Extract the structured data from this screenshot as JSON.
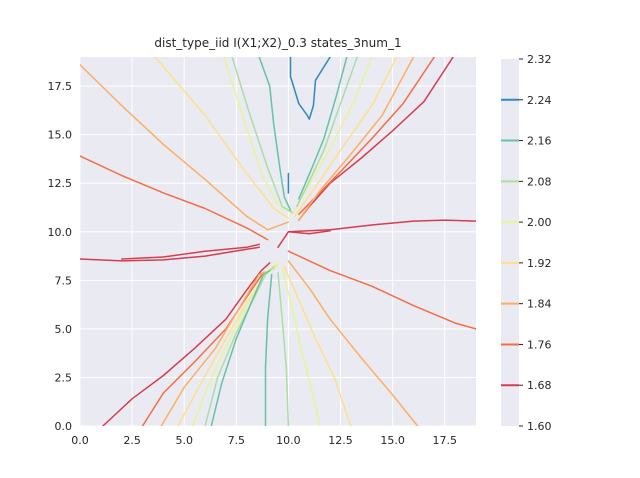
{
  "chart_data": {
    "type": "contour",
    "title": "dist_type_iid I(X1;X2)_0.3 states_3num_1",
    "xlabel": "",
    "ylabel": "",
    "xlim": [
      0,
      19
    ],
    "ylim": [
      0,
      19
    ],
    "x_ticks": [
      0.0,
      2.5,
      5.0,
      7.5,
      10.0,
      12.5,
      15.0,
      17.5
    ],
    "x_tick_labels": [
      "0.0",
      "2.5",
      "5.0",
      "7.5",
      "10.0",
      "12.5",
      "15.0",
      "17.5"
    ],
    "y_ticks": [
      0.0,
      2.5,
      5.0,
      7.5,
      10.0,
      12.5,
      15.0,
      17.5
    ],
    "y_tick_labels": [
      "0.0",
      "2.5",
      "5.0",
      "7.5",
      "10.0",
      "12.5",
      "15.0",
      "17.5"
    ],
    "grid": true,
    "colorbar": {
      "range": [
        1.6,
        2.32
      ],
      "ticks": [
        1.6,
        1.68,
        1.76,
        1.84,
        1.92,
        2.0,
        2.08,
        2.16,
        2.24,
        2.32
      ],
      "tick_labels": [
        "1.60",
        "1.68",
        "1.76",
        "1.84",
        "1.92",
        "2.00",
        "2.08",
        "2.16",
        "2.24",
        "2.32"
      ],
      "colors": [
        "#d53e4f",
        "#f46d43",
        "#fdae61",
        "#fee08b",
        "#e6f598",
        "#abdda4",
        "#66c2a5",
        "#3288bd"
      ]
    },
    "contours": [
      {
        "level": 1.68,
        "color": "#d53e4f",
        "paths": [
          [
            [
              0,
              8.6
            ],
            [
              2,
              8.5
            ],
            [
              4,
              8.55
            ],
            [
              6,
              8.75
            ],
            [
              8,
              9.1
            ],
            [
              8.6,
              9.2
            ]
          ],
          [
            [
              8.6,
              9.35
            ],
            [
              8,
              9.2
            ],
            [
              6,
              9.0
            ],
            [
              4,
              8.7
            ],
            [
              2,
              8.6
            ]
          ],
          [
            [
              1.1,
              0
            ],
            [
              2.5,
              1.4
            ],
            [
              4,
              2.6
            ],
            [
              5.5,
              4.0
            ],
            [
              7,
              5.5
            ],
            [
              8,
              7.0
            ],
            [
              8.7,
              8.0
            ],
            [
              9.1,
              8.4
            ]
          ],
          [
            [
              9.5,
              9.2
            ],
            [
              10,
              10
            ],
            [
              12,
              10.1
            ],
            [
              14,
              10.35
            ],
            [
              16,
              10.55
            ],
            [
              17.5,
              10.6
            ],
            [
              19,
              10.55
            ]
          ],
          [
            [
              10,
              10
            ],
            [
              11,
              9.9
            ],
            [
              12,
              10.05
            ]
          ],
          [
            [
              10.5,
              10.6
            ],
            [
              11,
              11.3
            ],
            [
              12,
              12.5
            ],
            [
              13.5,
              13.8
            ],
            [
              15,
              15.2
            ],
            [
              16.5,
              16.7
            ],
            [
              17.9,
              19
            ]
          ]
        ]
      },
      {
        "level": 1.76,
        "color": "#f46d43",
        "paths": [
          [
            [
              0,
              13.9
            ],
            [
              2,
              12.9
            ],
            [
              4,
              12.0
            ],
            [
              6,
              11.2
            ],
            [
              8,
              10.2
            ],
            [
              9,
              9.6
            ]
          ],
          [
            [
              3,
              0
            ],
            [
              4,
              1.7
            ],
            [
              5.5,
              3.3
            ],
            [
              7,
              5.0
            ],
            [
              8.1,
              6.8
            ],
            [
              8.8,
              7.9
            ]
          ],
          [
            [
              10,
              9.0
            ],
            [
              12,
              8.0
            ],
            [
              14,
              7.2
            ],
            [
              16,
              6.2
            ],
            [
              18,
              5.3
            ],
            [
              19,
              5.0
            ]
          ],
          [
            [
              10.5,
              10.9
            ],
            [
              11.5,
              12
            ],
            [
              12.5,
              13.1
            ],
            [
              14,
              14.8
            ],
            [
              15.5,
              16.6
            ],
            [
              17,
              19
            ]
          ]
        ]
      },
      {
        "level": 1.84,
        "color": "#fdae61",
        "paths": [
          [
            [
              0,
              18.6
            ],
            [
              2,
              16.5
            ],
            [
              4,
              14.5
            ],
            [
              6,
              12.7
            ],
            [
              8,
              10.8
            ],
            [
              9,
              10.1
            ],
            [
              10,
              10.5
            ]
          ],
          [
            [
              3.9,
              0
            ],
            [
              5,
              2.0
            ],
            [
              6.5,
              4.0
            ],
            [
              7.6,
              6.0
            ],
            [
              8.6,
              7.8
            ],
            [
              9.3,
              8.1
            ]
          ],
          [
            [
              10,
              8.5
            ],
            [
              11,
              7.1
            ],
            [
              12,
              5.5
            ],
            [
              13.5,
              3.5
            ],
            [
              15,
              1.6
            ],
            [
              16.2,
              0
            ]
          ],
          [
            [
              10.5,
              10.6
            ],
            [
              11.5,
              12.1
            ],
            [
              13,
              14.0
            ],
            [
              14.5,
              16.0
            ],
            [
              16,
              19
            ]
          ]
        ]
      },
      {
        "level": 1.92,
        "color": "#fee08b",
        "paths": [
          [
            [
              3.6,
              19
            ],
            [
              6,
              16
            ],
            [
              8,
              13
            ],
            [
              9.3,
              11.2
            ],
            [
              10,
              10.7
            ]
          ],
          [
            [
              4.7,
              0
            ],
            [
              5.8,
              2.2
            ],
            [
              7,
              4.5
            ],
            [
              8.1,
              6.5
            ],
            [
              8.9,
              7.8
            ],
            [
              9.5,
              8.3
            ]
          ],
          [
            [
              9.8,
              8.2
            ],
            [
              10.5,
              6.5
            ],
            [
              11.3,
              4.5
            ],
            [
              12.2,
              2.5
            ],
            [
              13,
              0
            ]
          ],
          [
            [
              10.3,
              10.8
            ],
            [
              11.3,
              12.3
            ],
            [
              12.5,
              14.2
            ],
            [
              14,
              16.5
            ],
            [
              15.2,
              19
            ]
          ]
        ]
      },
      {
        "level": 2.0,
        "color": "#e6f598",
        "paths": [
          [
            [
              6.9,
              19
            ],
            [
              7.8,
              16
            ],
            [
              8.7,
              13
            ],
            [
              9.5,
              11.4
            ],
            [
              10.2,
              10.9
            ]
          ],
          [
            [
              5.4,
              0
            ],
            [
              6.2,
              2.2
            ],
            [
              7.1,
              4.3
            ],
            [
              8.1,
              6.4
            ],
            [
              8.9,
              7.9
            ],
            [
              9.5,
              8.4
            ]
          ],
          [
            [
              9.7,
              8.1
            ],
            [
              10.2,
              6.0
            ],
            [
              10.6,
              4.0
            ],
            [
              11.1,
              2.0
            ],
            [
              11.5,
              0
            ]
          ],
          [
            [
              10.3,
              11.1
            ],
            [
              11.1,
              12.6
            ],
            [
              12,
              14.3
            ],
            [
              13.1,
              16.6
            ],
            [
              14,
              19
            ]
          ]
        ]
      },
      {
        "level": 2.08,
        "color": "#abdda4",
        "paths": [
          [
            [
              7.3,
              19
            ],
            [
              8.1,
              16.2
            ],
            [
              9.0,
              13.3
            ],
            [
              9.7,
              11.3
            ],
            [
              10.2,
              11.0
            ]
          ],
          [
            [
              6.0,
              0
            ],
            [
              6.6,
              2.5
            ],
            [
              7.5,
              4.8
            ],
            [
              8.4,
              6.7
            ],
            [
              8.9,
              7.8
            ],
            [
              9.3,
              8.2
            ]
          ],
          [
            [
              9.5,
              7.9
            ],
            [
              9.7,
              5.5
            ],
            [
              9.9,
              3.0
            ],
            [
              10.0,
              0
            ]
          ],
          [
            [
              10.4,
              11.3
            ],
            [
              11.0,
              12.6
            ],
            [
              11.7,
              14.2
            ],
            [
              12.5,
              16.6
            ],
            [
              13.3,
              19
            ]
          ]
        ]
      },
      {
        "level": 2.16,
        "color": "#66c2a5",
        "paths": [
          [
            [
              8.6,
              19
            ],
            [
              9.1,
              17.5
            ],
            [
              9.3,
              15.5
            ],
            [
              9.6,
              13.2
            ],
            [
              9.8,
              11.8
            ],
            [
              10.1,
              11.1
            ]
          ],
          [
            [
              6.3,
              0
            ],
            [
              6.8,
              2.2
            ],
            [
              7.5,
              4.5
            ],
            [
              8.2,
              6.3
            ],
            [
              8.8,
              7.8
            ],
            [
              9.1,
              8.0
            ]
          ],
          [
            [
              9.2,
              7.8
            ],
            [
              9.0,
              5.5
            ],
            [
              8.9,
              3.0
            ],
            [
              8.9,
              0
            ]
          ],
          [
            [
              10.5,
              11.7
            ],
            [
              11.1,
              13.2
            ],
            [
              11.7,
              14.8
            ],
            [
              12.3,
              17
            ],
            [
              12.8,
              19
            ]
          ]
        ]
      },
      {
        "level": 2.24,
        "color": "#3288bd",
        "paths": [
          [
            [
              10.0,
              12.0
            ],
            [
              10.0,
              13.0
            ]
          ],
          [
            [
              10.1,
              19
            ],
            [
              10.1,
              18.0
            ],
            [
              10.5,
              16.6
            ],
            [
              10.9,
              16.0
            ],
            [
              11.0,
              15.8
            ],
            [
              11.2,
              16.5
            ],
            [
              11.3,
              17.8
            ],
            [
              12,
              19
            ]
          ]
        ]
      }
    ]
  }
}
